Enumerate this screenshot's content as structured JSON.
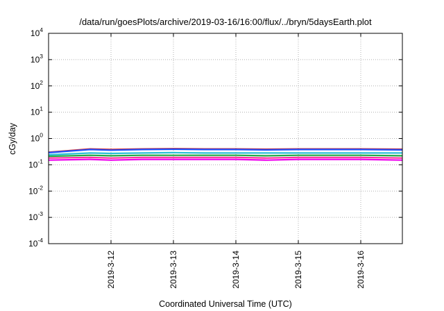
{
  "chart_data": {
    "type": "line",
    "title": "/data/run/goesPlots/archive/2019-03-16/16:00/flux/../bryn/5daysEarth.plot",
    "xlabel": "Coordinated Universal Time (UTC)",
    "ylabel": "cGy/day",
    "y_scale": "log",
    "ylim": [
      0.0001,
      10000
    ],
    "y_ticks": [
      {
        "base": "10",
        "exp": "4",
        "value": 10000
      },
      {
        "base": "10",
        "exp": "3",
        "value": 1000
      },
      {
        "base": "10",
        "exp": "2",
        "value": 100
      },
      {
        "base": "10",
        "exp": "1",
        "value": 10
      },
      {
        "base": "10",
        "exp": "0",
        "value": 1
      },
      {
        "base": "10",
        "exp": "-1",
        "value": 0.1
      },
      {
        "base": "10",
        "exp": "-2",
        "value": 0.01
      },
      {
        "base": "10",
        "exp": "-3",
        "value": 0.001
      },
      {
        "base": "10",
        "exp": "-4",
        "value": 0.0001
      }
    ],
    "xlim": [
      "2019-03-11 00:00",
      "2019-03-16 16:00"
    ],
    "x_ticks": [
      "2019-3-12",
      "2019-3-13",
      "2019-3-14",
      "2019-3-15",
      "2019-3-16"
    ],
    "grid": true,
    "legend": "none",
    "x": [
      "2019-03-11 00:00",
      "2019-03-11 16:00",
      "2019-03-12 00:00",
      "2019-03-12 12:00",
      "2019-03-13 00:00",
      "2019-03-13 12:00",
      "2019-03-14 00:00",
      "2019-03-14 12:00",
      "2019-03-15 00:00",
      "2019-03-15 12:00",
      "2019-03-16 00:00",
      "2019-03-16 16:00"
    ],
    "series": [
      {
        "color": "#d62728",
        "values": [
          0.3,
          0.4,
          0.38,
          0.4,
          0.41,
          0.4,
          0.4,
          0.39,
          0.4,
          0.4,
          0.4,
          0.39
        ]
      },
      {
        "color": "#1f4fff",
        "values": [
          0.29,
          0.38,
          0.36,
          0.38,
          0.39,
          0.38,
          0.38,
          0.37,
          0.38,
          0.38,
          0.38,
          0.37
        ]
      },
      {
        "color": "#2bbfd6",
        "values": [
          0.24,
          0.28,
          0.27,
          0.28,
          0.29,
          0.28,
          0.28,
          0.28,
          0.28,
          0.28,
          0.28,
          0.28
        ]
      },
      {
        "color": "#22aa44",
        "values": [
          0.21,
          0.23,
          0.22,
          0.23,
          0.23,
          0.23,
          0.23,
          0.22,
          0.23,
          0.23,
          0.23,
          0.22
        ]
      },
      {
        "color": "#ff2fa0",
        "values": [
          0.18,
          0.19,
          0.18,
          0.19,
          0.19,
          0.19,
          0.19,
          0.18,
          0.19,
          0.19,
          0.19,
          0.18
        ]
      },
      {
        "color": "#ee00ee",
        "values": [
          0.15,
          0.16,
          0.15,
          0.16,
          0.16,
          0.16,
          0.16,
          0.15,
          0.16,
          0.16,
          0.16,
          0.15
        ]
      }
    ]
  }
}
